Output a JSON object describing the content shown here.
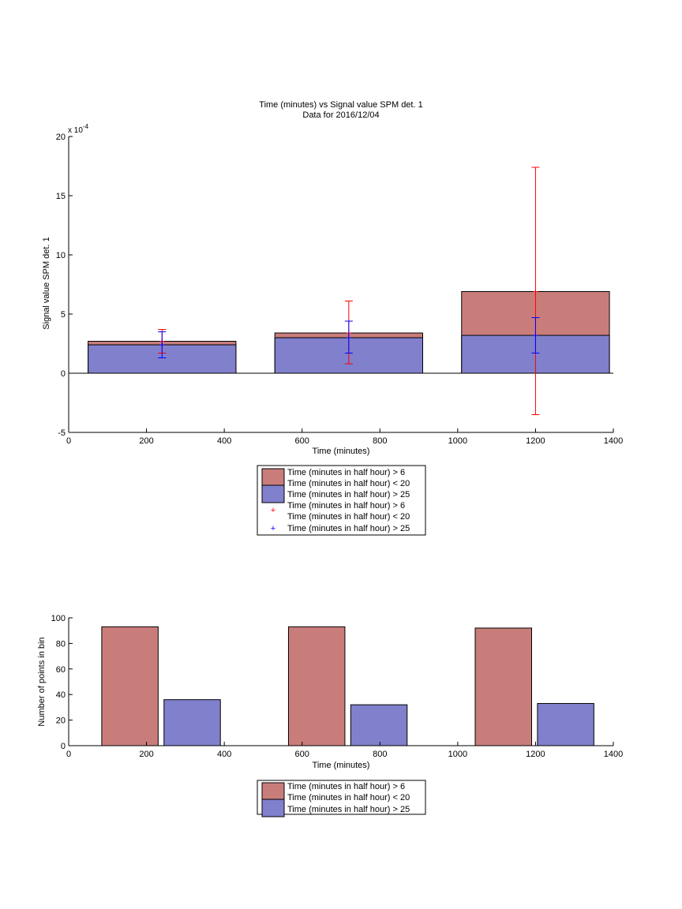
{
  "chart_data": [
    {
      "type": "bar",
      "title": "Time (minutes) vs Signal value SPM det. 1",
      "subtitle": "Data for 2016/12/04",
      "xlabel": "Time (minutes)",
      "ylabel": "Signal value SPM det. 1",
      "y_exponent_label": "x 10",
      "y_exponent_power": "-4",
      "xlim": [
        0,
        1400
      ],
      "ylim": [
        -5,
        20
      ],
      "y_multiplier": 0.0001,
      "xticks": [
        0,
        200,
        400,
        600,
        800,
        1000,
        1200,
        1400
      ],
      "yticks": [
        -5,
        0,
        5,
        10,
        15,
        20
      ],
      "grid": false,
      "legend_position": "below plot",
      "bins": [
        {
          "x_start": 50,
          "x_end": 430
        },
        {
          "x_start": 530,
          "x_end": 910
        },
        {
          "x_start": 1010,
          "x_end": 1390
        }
      ],
      "series": [
        {
          "name": "Time (minutes in half hour) > 6\nTime (minutes in half hour) < 20",
          "style": "bar",
          "color": "#c97d7b",
          "values": [
            2.7,
            3.4,
            6.9
          ]
        },
        {
          "name": "Time (minutes in half hour) > 25",
          "style": "bar",
          "color": "#8080cc",
          "values": [
            2.4,
            3.0,
            3.2
          ]
        },
        {
          "name": "Time (minutes in half hour) > 6\nTime (minutes in half hour) < 20",
          "style": "errorbar",
          "color": "#ff0000",
          "x": [
            240,
            720,
            1200
          ],
          "values": [
            2.7,
            3.4,
            6.9
          ],
          "lower": [
            1.7,
            0.8,
            -3.5
          ],
          "upper": [
            3.7,
            6.1,
            17.4
          ]
        },
        {
          "name": "Time (minutes in half hour) > 25",
          "style": "errorbar",
          "color": "#0000ff",
          "x": [
            240,
            720,
            1200
          ],
          "values": [
            2.4,
            3.0,
            3.2
          ],
          "lower": [
            1.3,
            1.7,
            1.7
          ],
          "upper": [
            3.5,
            4.4,
            4.7
          ]
        }
      ]
    },
    {
      "type": "bar",
      "xlabel": "Time (minutes)",
      "ylabel": "Number of points in bin",
      "xlim": [
        0,
        1400
      ],
      "ylim": [
        0,
        100
      ],
      "xticks": [
        0,
        200,
        400,
        600,
        800,
        1000,
        1200,
        1400
      ],
      "yticks": [
        0,
        20,
        40,
        60,
        80,
        100
      ],
      "grid": false,
      "legend_position": "below plot",
      "series": [
        {
          "name": "Time (minutes in half hour) > 6\nTime (minutes in half hour) < 20",
          "color": "#c97d7b",
          "x_ranges": [
            [
              85,
              230
            ],
            [
              565,
              710
            ],
            [
              1045,
              1190
            ]
          ],
          "values": [
            93,
            93,
            92
          ]
        },
        {
          "name": "Time (minutes in half hour) > 25",
          "color": "#8080cc",
          "x_ranges": [
            [
              245,
              390
            ],
            [
              725,
              870
            ],
            [
              1205,
              1350
            ]
          ],
          "values": [
            36,
            32,
            33
          ]
        }
      ]
    }
  ]
}
